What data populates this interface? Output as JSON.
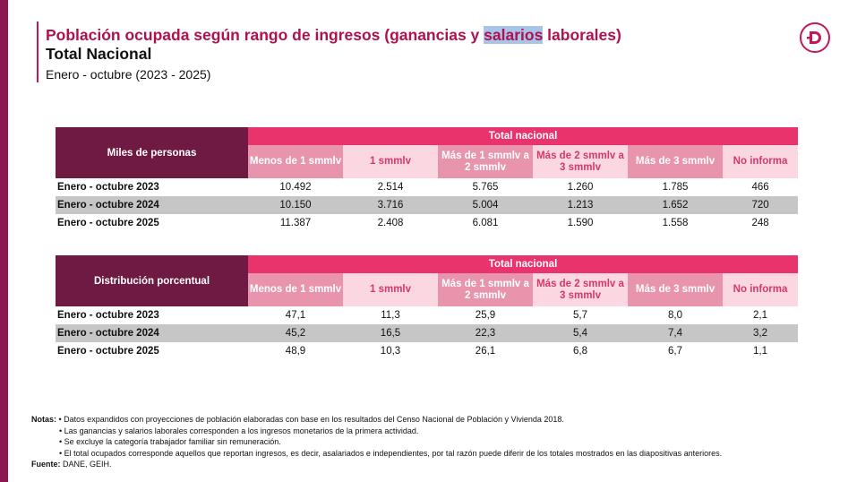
{
  "header": {
    "title_pre": "Población ocupada según rango de ingresos (ganancias y ",
    "title_highlight": "salarios",
    "title_post": " laborales)",
    "subtitle": "Total Nacional",
    "period": "Enero - octubre (2023 - 2025)"
  },
  "colors": {
    "brand": "#b0124f",
    "header_dark": "#6e1a42",
    "header_pink": "#e8336d",
    "col_dark": "#e994ad",
    "col_light": "#fbd8e1",
    "row_shade": "#c6c6c6"
  },
  "logo": {
    "icon": "dane-d-logo-icon"
  },
  "table1": {
    "corner": "Miles de personas",
    "group": "Total nacional",
    "columns": [
      "Menos de 1 smmlv",
      "1 smmlv",
      "Más de 1 smmlv a 2 smmlv",
      "Más de 2 smmlv a 3 smmlv",
      "Más de 3 smmlv",
      "No informa"
    ],
    "rows": [
      {
        "label": "Enero - octubre 2023",
        "values": [
          "10.492",
          "2.514",
          "5.765",
          "1.260",
          "1.785",
          "466"
        ]
      },
      {
        "label": "Enero - octubre 2024",
        "values": [
          "10.150",
          "3.716",
          "5.004",
          "1.213",
          "1.652",
          "720"
        ]
      },
      {
        "label": "Enero - octubre 2025",
        "values": [
          "11.387",
          "2.408",
          "6.081",
          "1.590",
          "1.558",
          "248"
        ]
      }
    ]
  },
  "table2": {
    "corner": "Distribución porcentual",
    "group": "Total nacional",
    "columns": [
      "Menos de 1 smmlv",
      "1 smmlv",
      "Más de 1 smmlv a 2 smmlv",
      "Más de 2 smmlv a 3 smmlv",
      "Más de 3 smmlv",
      "No informa"
    ],
    "rows": [
      {
        "label": "Enero - octubre 2023",
        "values": [
          "47,1",
          "11,3",
          "25,9",
          "5,7",
          "8,0",
          "2,1"
        ]
      },
      {
        "label": "Enero - octubre 2024",
        "values": [
          "45,2",
          "16,5",
          "22,3",
          "5,4",
          "7,4",
          "3,2"
        ]
      },
      {
        "label": "Enero - octubre 2025",
        "values": [
          "48,9",
          "10,3",
          "26,1",
          "6,8",
          "6,7",
          "1,1"
        ]
      }
    ]
  },
  "notes": {
    "label": "Notas:",
    "items": [
      "Datos expandidos con proyecciones de población elaboradas con base en los resultados del Censo Nacional de Población y Vivienda 2018.",
      "Las ganancias y salarios laborales corresponden a los ingresos monetarios de la primera actividad.",
      "Se excluye la categoría trabajador familiar sin remuneración.",
      "El total ocupados corresponde aquellos que reportan ingresos, es decir, asalariados e independientes, por tal razón puede diferir de los totales mostrados en las diapositivas anteriores."
    ],
    "source_label": "Fuente:",
    "source": "DANE, GEIH."
  }
}
